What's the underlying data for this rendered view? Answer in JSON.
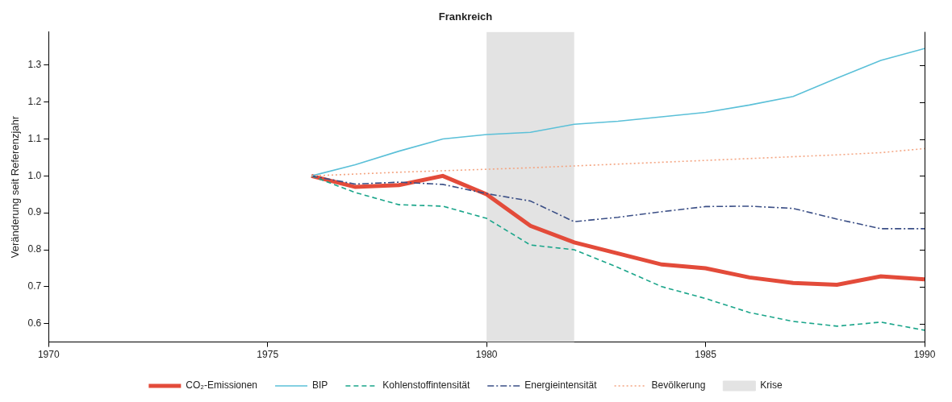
{
  "chart_data": {
    "type": "line",
    "title": "Frankreich",
    "y_label": "Veränderung seit Referenzjahr",
    "x": [
      1976,
      1977,
      1978,
      1979,
      1980,
      1981,
      1982,
      1983,
      1984,
      1985,
      1986,
      1987,
      1988,
      1989,
      1990
    ],
    "series": [
      {
        "name": "CO₂-Emissionen",
        "color": "#e34b3a",
        "line_style": "solid",
        "values": [
          1.0,
          0.97,
          0.975,
          1.0,
          0.95,
          0.865,
          0.82,
          0.79,
          0.76,
          0.75,
          0.725,
          0.71,
          0.705,
          0.728,
          0.72
        ]
      },
      {
        "name": "BIP",
        "color": "#5bc0d8",
        "line_style": "solid",
        "values": [
          1.0,
          1.03,
          1.067,
          1.1,
          1.112,
          1.118,
          1.14,
          1.148,
          1.16,
          1.172,
          1.192,
          1.215,
          1.265,
          1.313,
          1.345
        ]
      },
      {
        "name": "Kohlenstoffintensität",
        "color": "#1aa58a",
        "line_style": "dashed",
        "values": [
          1.0,
          0.955,
          0.922,
          0.918,
          0.885,
          0.813,
          0.8,
          0.752,
          0.7,
          0.668,
          0.63,
          0.606,
          0.593,
          0.604,
          0.582
        ]
      },
      {
        "name": "Energieintensität",
        "color": "#3b4f86",
        "line_style": "dashdot",
        "values": [
          1.0,
          0.978,
          0.983,
          0.977,
          0.952,
          0.932,
          0.876,
          0.888,
          0.903,
          0.917,
          0.918,
          0.912,
          0.883,
          0.857,
          0.857
        ]
      },
      {
        "name": "Bevölkerung",
        "color": "#f4a582",
        "line_style": "dotted",
        "values": [
          1.0,
          1.005,
          1.01,
          1.014,
          1.018,
          1.022,
          1.027,
          1.032,
          1.037,
          1.042,
          1.047,
          1.052,
          1.057,
          1.063,
          1.074
        ]
      }
    ],
    "spans": [
      {
        "name": "Krise",
        "start": 1980,
        "end": 1982,
        "color": "#e3e3e3"
      }
    ],
    "xlim": [
      1970,
      1990
    ],
    "xticks": [
      1970,
      1975,
      1980,
      1985,
      1990
    ],
    "ylim": [
      0.55,
      1.39
    ],
    "yticks": [
      0.6,
      0.7,
      0.8,
      0.9,
      {
        "value": 1.0,
        "label": "1.0"
      },
      1.1,
      1.2,
      1.3
    ],
    "grid": false,
    "legend": "bottom"
  }
}
